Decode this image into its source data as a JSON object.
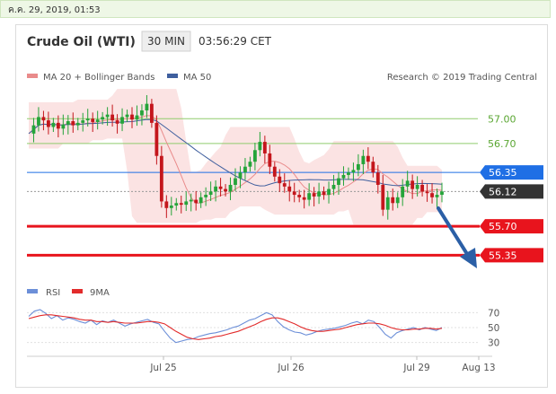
{
  "header": {
    "timestamp": "ค.ค. 29, 2019, 01:53",
    "title": "Crude Oil (WTI)",
    "timeframe": "30 MIN",
    "time": "03:56:29 CET"
  },
  "legend": {
    "ma20": "MA 20 + Bollinger Bands",
    "ma50": "MA 50",
    "credit": "Research © 2019 Trading Central",
    "rsi": "RSI",
    "ma9": "9MA"
  },
  "colors": {
    "ma20": "#e98b8b",
    "band": "#f9dada",
    "ma50": "#3f5f9e",
    "support": "#e8141d",
    "resistance_green": "#8fcc6d",
    "pivot": "#1f6fe5",
    "current": "#333333",
    "arrow": "#2b5fa6",
    "candle_up": "#25a43a",
    "candle_down": "#c4161c",
    "rsi": "#6c8fd8",
    "ma9": "#e22b2b"
  },
  "chart_data": {
    "type": "candlestick",
    "ylim": [
      55.18,
      57.35
    ],
    "x_labels": [
      "Jul 25",
      "Jul 26",
      "Jul 29",
      "Aug 13"
    ],
    "levels": [
      {
        "value": 57.0,
        "label": "57.00",
        "kind": "resistance"
      },
      {
        "value": 56.7,
        "label": "56.70",
        "kind": "resistance"
      },
      {
        "value": 56.35,
        "label": "56.35",
        "kind": "pivot"
      },
      {
        "value": 56.12,
        "label": "56.12",
        "kind": "current"
      },
      {
        "value": 55.7,
        "label": "55.70",
        "kind": "support"
      },
      {
        "value": 55.35,
        "label": "55.35",
        "kind": "support"
      }
    ],
    "price": [
      56.82,
      56.92,
      57.02,
      56.98,
      56.9,
      56.95,
      56.88,
      56.93,
      56.97,
      56.92,
      56.95,
      56.98,
      57.0,
      56.96,
      56.99,
      57.02,
      57.05,
      56.98,
      56.94,
      57.02,
      57.05,
      56.99,
      57.04,
      57.1,
      57.18,
      56.95,
      56.55,
      56.0,
      55.92,
      55.95,
      55.98,
      55.96,
      56.0,
      56.02,
      55.98,
      56.05,
      56.08,
      56.12,
      56.18,
      56.15,
      56.12,
      56.2,
      56.28,
      56.35,
      56.42,
      56.48,
      56.62,
      56.72,
      56.58,
      56.42,
      56.3,
      56.22,
      56.18,
      56.12,
      56.08,
      56.05,
      56.02,
      56.1,
      56.06,
      56.12,
      56.08,
      56.15,
      56.2,
      56.28,
      56.32,
      56.35,
      56.38,
      56.45,
      56.55,
      56.48,
      56.35,
      56.2,
      55.9,
      56.05,
      55.98,
      56.05,
      56.18,
      56.25,
      56.15,
      56.2,
      56.12,
      56.1,
      56.05,
      56.08,
      56.12
    ],
    "rsi_axis": [
      70,
      50,
      30
    ],
    "rsi": [
      65,
      72,
      74,
      69,
      62,
      66,
      60,
      63,
      61,
      58,
      56,
      60,
      54,
      59,
      57,
      60,
      56,
      52,
      55,
      57,
      59,
      61,
      57,
      55,
      45,
      36,
      30,
      32,
      34,
      35,
      38,
      40,
      42,
      43,
      45,
      47,
      50,
      52,
      56,
      60,
      62,
      66,
      70,
      67,
      58,
      51,
      47,
      44,
      43,
      40,
      42,
      45,
      47,
      48,
      49,
      51,
      53,
      56,
      58,
      55,
      60,
      58,
      50,
      41,
      36,
      43,
      46,
      48,
      50,
      47,
      50,
      48,
      46,
      50
    ],
    "ma9": [
      62,
      64,
      66,
      67,
      67,
      66,
      65,
      64,
      63,
      61,
      60,
      60,
      58,
      58,
      57,
      58,
      57,
      56,
      56,
      56,
      57,
      58,
      58,
      57,
      55,
      50,
      45,
      41,
      37,
      35,
      34,
      35,
      36,
      38,
      39,
      41,
      43,
      45,
      48,
      51,
      54,
      58,
      61,
      63,
      63,
      61,
      58,
      55,
      51,
      48,
      46,
      45,
      45,
      46,
      47,
      48,
      50,
      52,
      54,
      55,
      56,
      56,
      55,
      53,
      50,
      48,
      47,
      47,
      48,
      48,
      49,
      49,
      48,
      49
    ]
  }
}
